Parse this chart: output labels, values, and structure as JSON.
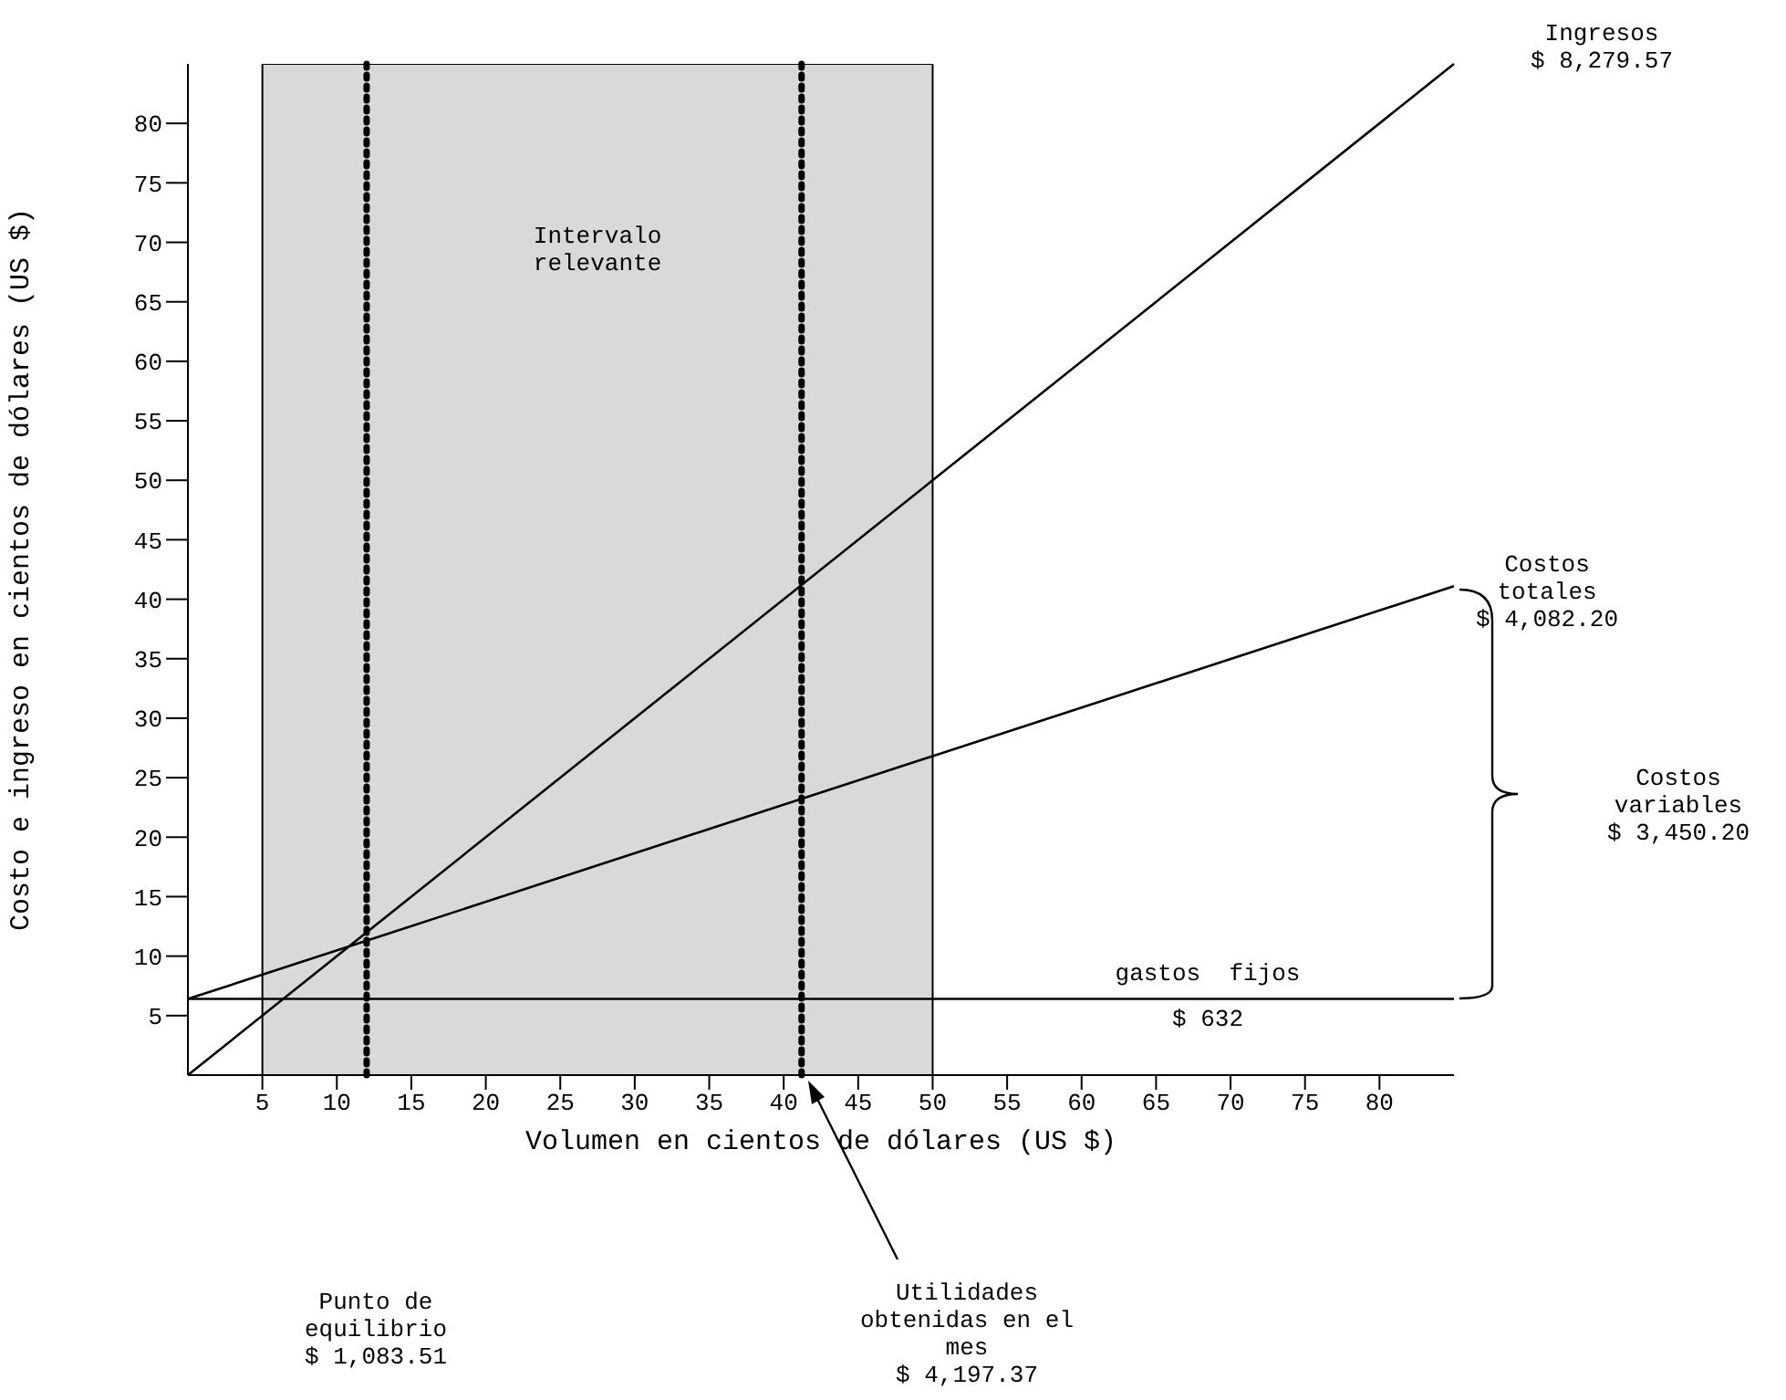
{
  "chart_data": {
    "type": "line",
    "xlabel": "Volumen en cientos de dólares (US $)",
    "ylabel": "Costo e ingreso en cientos de dólares (US $)",
    "x": [
      0,
      85
    ],
    "series": [
      {
        "color": "#000000",
        "values": [
          0,
          85
        ]
      },
      {
        "color": "#000000",
        "values": [
          6.4,
          41.1
        ]
      },
      {
        "color": "#000000",
        "values": [
          6.4,
          6.4
        ]
      }
    ],
    "xlim": [
      0,
      85
    ],
    "ylim": [
      0,
      85
    ],
    "xticks": [
      5,
      10,
      15,
      20,
      25,
      30,
      35,
      40,
      45,
      50,
      55,
      60,
      65,
      70,
      75,
      80
    ],
    "yticks": [
      5,
      10,
      15,
      20,
      25,
      30,
      35,
      40,
      45,
      50,
      55,
      60,
      65,
      70,
      75,
      80
    ],
    "bands": [
      {
        "axis": "x",
        "from": 5,
        "to": 50,
        "label": "Intervalo\nrelevante",
        "color": "#d9d9d9"
      }
    ],
    "ref_lines": [
      {
        "axis": "x",
        "value": 12,
        "line_style": "dotted",
        "color": "#000000"
      },
      {
        "axis": "x",
        "value": 41.2,
        "line_style": "dotted",
        "color": "#000000"
      }
    ],
    "annotations": [
      "Ingresos\n$ 8,279.57",
      "Costos\ntotales\n$ 4,082.20",
      "Costos\nvariables\n$ 3,450.20",
      "gastos  fijos\n$ 632",
      "Punto de\nequilibrio\n$ 1,083.51",
      "Utilidades\nobtenidas en el\nmes\n$ 4,197.37"
    ],
    "grid": false,
    "legend": false,
    "marker": "none",
    "line_style": "solid"
  }
}
